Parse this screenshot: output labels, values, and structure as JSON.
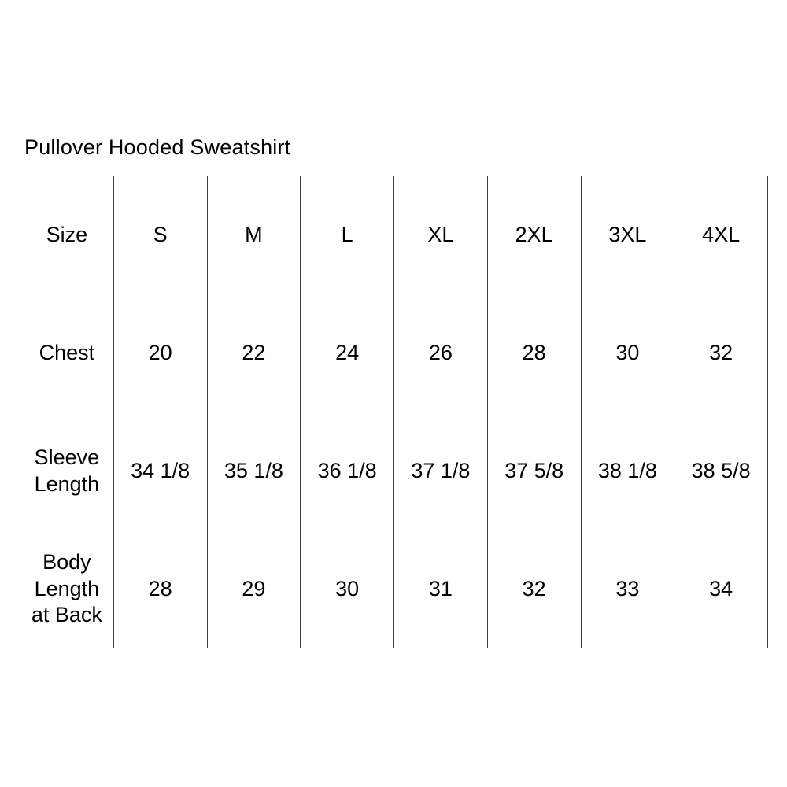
{
  "title": "Pullover Hooded Sweatshirt",
  "colors": {
    "background": "#ffffff",
    "border": "#404040",
    "text": "#000000"
  },
  "chart_data": {
    "type": "table",
    "title": "Pullover Hooded Sweatshirt",
    "header": [
      "Size",
      "S",
      "M",
      "L",
      "XL",
      "2XL",
      "3XL",
      "4XL"
    ],
    "rows": [
      {
        "label": "Chest",
        "values": [
          "20",
          "22",
          "24",
          "26",
          "28",
          "30",
          "32"
        ]
      },
      {
        "label": "Sleeve Length",
        "values": [
          "34 1/8",
          "35 1/8",
          "36 1/8",
          "37 1/8",
          "37 5/8",
          "38 1/8",
          "38 5/8"
        ]
      },
      {
        "label": "Body Length at Back",
        "values": [
          "28",
          "29",
          "30",
          "31",
          "32",
          "33",
          "34"
        ]
      }
    ]
  }
}
